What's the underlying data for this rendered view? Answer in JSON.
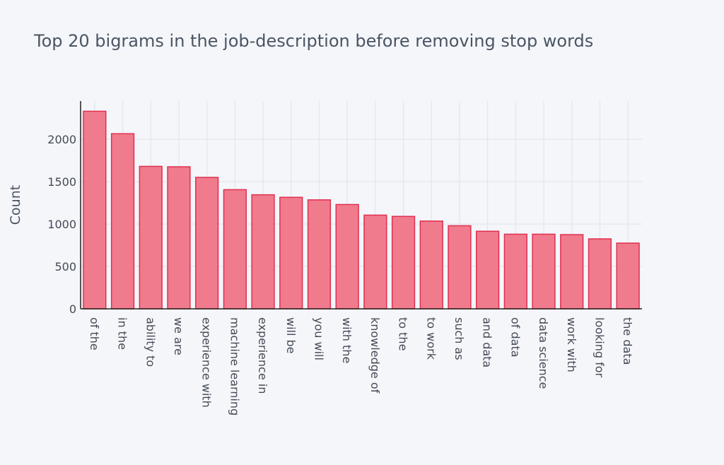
{
  "chart_data": {
    "type": "bar",
    "title": "Top 20 bigrams in the job-description before removing stop words",
    "xlabel": "",
    "ylabel": "Count",
    "categories": [
      "of the",
      "in the",
      "ability to",
      "we are",
      "experience with",
      "machine learning",
      "experience in",
      "will be",
      "you will",
      "with the",
      "knowledge of",
      "to the",
      "to work",
      "such as",
      "and data",
      "of data",
      "data science",
      "work with",
      "looking for",
      "the data"
    ],
    "values": [
      2330,
      2065,
      1680,
      1675,
      1550,
      1405,
      1345,
      1315,
      1285,
      1230,
      1105,
      1090,
      1035,
      980,
      915,
      880,
      880,
      875,
      825,
      775
    ],
    "ylim": [
      0,
      2450
    ],
    "yticks": [
      0,
      500,
      1000,
      1500,
      2000
    ],
    "grid": true,
    "colors": {
      "bar_fill": "#f07b8c",
      "bar_stroke": "#e0304f",
      "grid": "#e2e5ec",
      "axis": "#222222",
      "text": "#444a55",
      "background": "#f4f6fa"
    }
  }
}
